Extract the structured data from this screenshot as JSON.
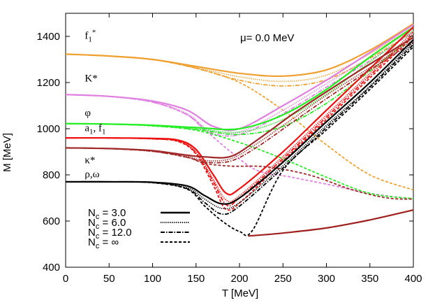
{
  "chart_data": {
    "type": "line",
    "xlabel": "T [MeV]",
    "ylabel": "M [MeV]",
    "xlim": [
      0,
      400
    ],
    "ylim": [
      400,
      1500
    ],
    "xticks": [
      0,
      50,
      100,
      150,
      200,
      250,
      300,
      350,
      400
    ],
    "yticks": [
      400,
      600,
      800,
      1000,
      1200,
      1400
    ],
    "annotation": "μ= 0.0 MeV",
    "grid": false,
    "legend_position": "bottom-left",
    "curve_labels": [
      {
        "id": "f1star",
        "base": "f",
        "sub": "1",
        "sup": "*",
        "x": 22,
        "y": 1390
      },
      {
        "id": "kstar",
        "base": "K*",
        "x": 22,
        "y": 1205
      },
      {
        "id": "phi",
        "base": "φ",
        "x": 22,
        "y": 1055
      },
      {
        "id": "a1f1",
        "base": "a",
        "sub": "1",
        "rest": ", f",
        "sub2": "1",
        "x": 22,
        "y": 990
      },
      {
        "id": "kappastar",
        "base": "κ*",
        "x": 22,
        "y": 850
      },
      {
        "id": "rhoomega",
        "base": "ρ,ω",
        "x": 22,
        "y": 790
      }
    ],
    "legend": [
      {
        "id": "nc3",
        "label_base": "N",
        "label_sub": "c",
        "label_rest": " = 3.0",
        "dash": "solid"
      },
      {
        "id": "nc6",
        "label_base": "N",
        "label_sub": "c",
        "label_rest": " = 6.0",
        "dash": "dotted"
      },
      {
        "id": "nc12",
        "label_base": "N",
        "label_sub": "c",
        "label_rest": " = 12.0",
        "dash": "dashdot"
      },
      {
        "id": "ncinf",
        "label_base": "N",
        "label_sub": "c",
        "label_rest": " = ∞",
        "dash": "dashed"
      }
    ],
    "colors": {
      "f1star": "#f0a030",
      "kstar": "#e080e0",
      "phi": "#22ee22",
      "a1f1": "#ee1111",
      "kappastar": "#a02828",
      "rhoomega": "#000000",
      "sigma": "#a02020"
    },
    "series": [
      {
        "group": "f1star",
        "nc": "3.0",
        "dash": "solid",
        "points": [
          [
            0,
            1323
          ],
          [
            50,
            1315
          ],
          [
            100,
            1300
          ],
          [
            150,
            1270
          ],
          [
            200,
            1240
          ],
          [
            250,
            1228
          ],
          [
            300,
            1255
          ],
          [
            350,
            1340
          ],
          [
            400,
            1455
          ]
        ]
      },
      {
        "group": "f1star",
        "nc": "6.0",
        "dash": "dotted",
        "points": [
          [
            0,
            1323
          ],
          [
            50,
            1315
          ],
          [
            100,
            1300
          ],
          [
            150,
            1265
          ],
          [
            200,
            1225
          ],
          [
            250,
            1205
          ],
          [
            300,
            1232
          ],
          [
            350,
            1325
          ],
          [
            400,
            1440
          ]
        ]
      },
      {
        "group": "f1star",
        "nc": "12.0",
        "dash": "dashdot",
        "points": [
          [
            0,
            1323
          ],
          [
            50,
            1315
          ],
          [
            100,
            1300
          ],
          [
            150,
            1262
          ],
          [
            200,
            1210
          ],
          [
            250,
            1185
          ],
          [
            300,
            1212
          ],
          [
            350,
            1305
          ],
          [
            400,
            1420
          ]
        ]
      },
      {
        "group": "f1star",
        "nc": "∞",
        "dash": "dashed",
        "points": [
          [
            0,
            1323
          ],
          [
            50,
            1315
          ],
          [
            100,
            1300
          ],
          [
            150,
            1262
          ],
          [
            200,
            1200
          ],
          [
            250,
            1080
          ],
          [
            300,
            930
          ],
          [
            350,
            800
          ],
          [
            400,
            735
          ]
        ]
      },
      {
        "group": "kstar",
        "nc": "3.0",
        "dash": "solid",
        "points": [
          [
            0,
            1148
          ],
          [
            50,
            1140
          ],
          [
            100,
            1120
          ],
          [
            140,
            1080
          ],
          [
            170,
            1010
          ],
          [
            200,
            1000
          ],
          [
            250,
            1100
          ],
          [
            300,
            1210
          ],
          [
            350,
            1330
          ],
          [
            400,
            1450
          ]
        ]
      },
      {
        "group": "kstar",
        "nc": "6.0",
        "dash": "dotted",
        "points": [
          [
            0,
            1148
          ],
          [
            50,
            1140
          ],
          [
            100,
            1118
          ],
          [
            140,
            1065
          ],
          [
            165,
            995
          ],
          [
            200,
            985
          ],
          [
            250,
            1080
          ],
          [
            300,
            1195
          ],
          [
            350,
            1310
          ],
          [
            400,
            1435
          ]
        ]
      },
      {
        "group": "kstar",
        "nc": "12.0",
        "dash": "dashdot",
        "points": [
          [
            0,
            1148
          ],
          [
            50,
            1140
          ],
          [
            100,
            1115
          ],
          [
            140,
            1060
          ],
          [
            165,
            985
          ],
          [
            200,
            975
          ],
          [
            250,
            1065
          ],
          [
            300,
            1180
          ],
          [
            350,
            1295
          ],
          [
            400,
            1420
          ]
        ]
      },
      {
        "group": "kstar",
        "nc": "∞",
        "dash": "dashed",
        "points": [
          [
            0,
            1148
          ],
          [
            50,
            1140
          ],
          [
            100,
            1115
          ],
          [
            140,
            1060
          ],
          [
            165,
            980
          ],
          [
            190,
            900
          ],
          [
            220,
            820
          ],
          [
            260,
            790
          ],
          [
            300,
            760
          ],
          [
            350,
            720
          ],
          [
            400,
            695
          ]
        ]
      },
      {
        "group": "phi",
        "nc": "3.0",
        "dash": "solid",
        "points": [
          [
            0,
            1022
          ],
          [
            50,
            1020
          ],
          [
            100,
            1015
          ],
          [
            150,
            1005
          ],
          [
            200,
            1000
          ],
          [
            250,
            1060
          ],
          [
            300,
            1170
          ],
          [
            350,
            1310
          ],
          [
            400,
            1440
          ]
        ]
      },
      {
        "group": "phi",
        "nc": "6.0",
        "dash": "dotted",
        "points": [
          [
            0,
            1022
          ],
          [
            50,
            1020
          ],
          [
            100,
            1015
          ],
          [
            150,
            1000
          ],
          [
            200,
            985
          ],
          [
            250,
            1040
          ],
          [
            300,
            1150
          ],
          [
            350,
            1290
          ],
          [
            400,
            1425
          ]
        ]
      },
      {
        "group": "phi",
        "nc": "12.0",
        "dash": "dashdot",
        "points": [
          [
            0,
            1022
          ],
          [
            50,
            1020
          ],
          [
            100,
            1013
          ],
          [
            150,
            997
          ],
          [
            200,
            975
          ],
          [
            250,
            1010
          ],
          [
            300,
            1110
          ],
          [
            350,
            1250
          ],
          [
            400,
            1400
          ]
        ]
      },
      {
        "group": "phi",
        "nc": "∞",
        "dash": "dashed",
        "points": [
          [
            0,
            1022
          ],
          [
            50,
            1020
          ],
          [
            100,
            1012
          ],
          [
            150,
            993
          ],
          [
            200,
            940
          ],
          [
            250,
            870
          ],
          [
            300,
            790
          ],
          [
            350,
            720
          ],
          [
            400,
            697
          ]
        ]
      },
      {
        "group": "a1f1",
        "nc": "3.0",
        "dash": "solid",
        "points": [
          [
            0,
            960
          ],
          [
            50,
            960
          ],
          [
            100,
            958
          ],
          [
            130,
            950
          ],
          [
            150,
            910
          ],
          [
            170,
            800
          ],
          [
            185,
            720
          ],
          [
            200,
            740
          ],
          [
            250,
            900
          ],
          [
            300,
            1080
          ],
          [
            350,
            1260
          ],
          [
            400,
            1440
          ]
        ]
      },
      {
        "group": "a1f1",
        "nc": "6.0",
        "dash": "dotted",
        "points": [
          [
            0,
            960
          ],
          [
            50,
            960
          ],
          [
            100,
            957
          ],
          [
            130,
            947
          ],
          [
            150,
            900
          ],
          [
            170,
            780
          ],
          [
            185,
            690
          ],
          [
            200,
            710
          ],
          [
            250,
            880
          ],
          [
            300,
            1060
          ],
          [
            350,
            1240
          ],
          [
            400,
            1420
          ]
        ]
      },
      {
        "group": "a1f1",
        "nc": "12.0",
        "dash": "dashdot",
        "points": [
          [
            0,
            960
          ],
          [
            50,
            960
          ],
          [
            100,
            956
          ],
          [
            130,
            945
          ],
          [
            150,
            895
          ],
          [
            170,
            770
          ],
          [
            185,
            670
          ],
          [
            200,
            700
          ],
          [
            250,
            870
          ],
          [
            300,
            1050
          ],
          [
            350,
            1230
          ],
          [
            400,
            1410
          ]
        ]
      },
      {
        "group": "a1f1",
        "nc": "∞",
        "dash": "dashed",
        "points": [
          [
            0,
            960
          ],
          [
            50,
            960
          ],
          [
            100,
            956
          ],
          [
            130,
            944
          ],
          [
            150,
            890
          ],
          [
            170,
            755
          ],
          [
            185,
            650
          ],
          [
            205,
            695
          ],
          [
            250,
            860
          ],
          [
            300,
            1040
          ],
          [
            350,
            1220
          ],
          [
            400,
            1400
          ]
        ]
      },
      {
        "group": "kappastar",
        "nc": "3.0",
        "dash": "solid",
        "points": [
          [
            0,
            917
          ],
          [
            50,
            914
          ],
          [
            100,
            905
          ],
          [
            140,
            885
          ],
          [
            160,
            878
          ],
          [
            190,
            880
          ],
          [
            220,
            950
          ],
          [
            260,
            1060
          ],
          [
            300,
            1160
          ],
          [
            350,
            1280
          ],
          [
            400,
            1395
          ]
        ]
      },
      {
        "group": "kappastar",
        "nc": "6.0",
        "dash": "dotted",
        "points": [
          [
            0,
            917
          ],
          [
            50,
            914
          ],
          [
            100,
            903
          ],
          [
            140,
            880
          ],
          [
            160,
            862
          ],
          [
            190,
            870
          ],
          [
            220,
            935
          ],
          [
            260,
            1040
          ],
          [
            300,
            1145
          ],
          [
            350,
            1265
          ],
          [
            400,
            1385
          ]
        ]
      },
      {
        "group": "kappastar",
        "nc": "12.0",
        "dash": "dashdot",
        "points": [
          [
            0,
            917
          ],
          [
            50,
            914
          ],
          [
            100,
            902
          ],
          [
            140,
            876
          ],
          [
            160,
            855
          ],
          [
            190,
            860
          ],
          [
            220,
            920
          ],
          [
            260,
            1025
          ],
          [
            300,
            1130
          ],
          [
            350,
            1255
          ],
          [
            400,
            1375
          ]
        ]
      },
      {
        "group": "kappastar",
        "nc": "∞",
        "dash": "dashed",
        "points": [
          [
            0,
            917
          ],
          [
            50,
            914
          ],
          [
            100,
            902
          ],
          [
            140,
            876
          ],
          [
            160,
            850
          ],
          [
            190,
            838
          ],
          [
            230,
            835
          ],
          [
            280,
            800
          ],
          [
            330,
            735
          ],
          [
            370,
            700
          ],
          [
            400,
            695
          ]
        ]
      },
      {
        "group": "rhoomega",
        "nc": "3.0",
        "dash": "solid",
        "points": [
          [
            0,
            770
          ],
          [
            50,
            770
          ],
          [
            100,
            768
          ],
          [
            140,
            752
          ],
          [
            160,
            710
          ],
          [
            180,
            675
          ],
          [
            200,
            700
          ],
          [
            250,
            855
          ],
          [
            300,
            1030
          ],
          [
            350,
            1200
          ],
          [
            400,
            1385
          ]
        ]
      },
      {
        "group": "rhoomega",
        "nc": "6.0",
        "dash": "dotted",
        "points": [
          [
            0,
            770
          ],
          [
            50,
            770
          ],
          [
            100,
            767
          ],
          [
            140,
            745
          ],
          [
            160,
            695
          ],
          [
            180,
            655
          ],
          [
            200,
            680
          ],
          [
            250,
            840
          ],
          [
            300,
            1015
          ],
          [
            350,
            1185
          ],
          [
            400,
            1375
          ]
        ]
      },
      {
        "group": "rhoomega",
        "nc": "12.0",
        "dash": "dashdot",
        "points": [
          [
            0,
            770
          ],
          [
            50,
            770
          ],
          [
            100,
            767
          ],
          [
            140,
            740
          ],
          [
            160,
            680
          ],
          [
            180,
            630
          ],
          [
            200,
            665
          ],
          [
            250,
            830
          ],
          [
            300,
            1005
          ],
          [
            350,
            1180
          ],
          [
            400,
            1365
          ]
        ]
      },
      {
        "group": "rhoomega",
        "nc": "∞",
        "dash": "dashed",
        "points": [
          [
            0,
            770
          ],
          [
            50,
            770
          ],
          [
            100,
            766
          ],
          [
            140,
            738
          ],
          [
            160,
            665
          ],
          [
            180,
            600
          ],
          [
            200,
            555
          ],
          [
            215,
            560
          ],
          [
            250,
            820
          ],
          [
            300,
            995
          ],
          [
            350,
            1170
          ],
          [
            400,
            1355
          ]
        ]
      },
      {
        "group": "sigma",
        "nc": "3.0",
        "dash": "solid",
        "points": [
          [
            210,
            535
          ],
          [
            250,
            548
          ],
          [
            300,
            570
          ],
          [
            350,
            605
          ],
          [
            400,
            648
          ]
        ]
      }
    ]
  },
  "legend_sample_colors": {
    "line": "#000000"
  }
}
